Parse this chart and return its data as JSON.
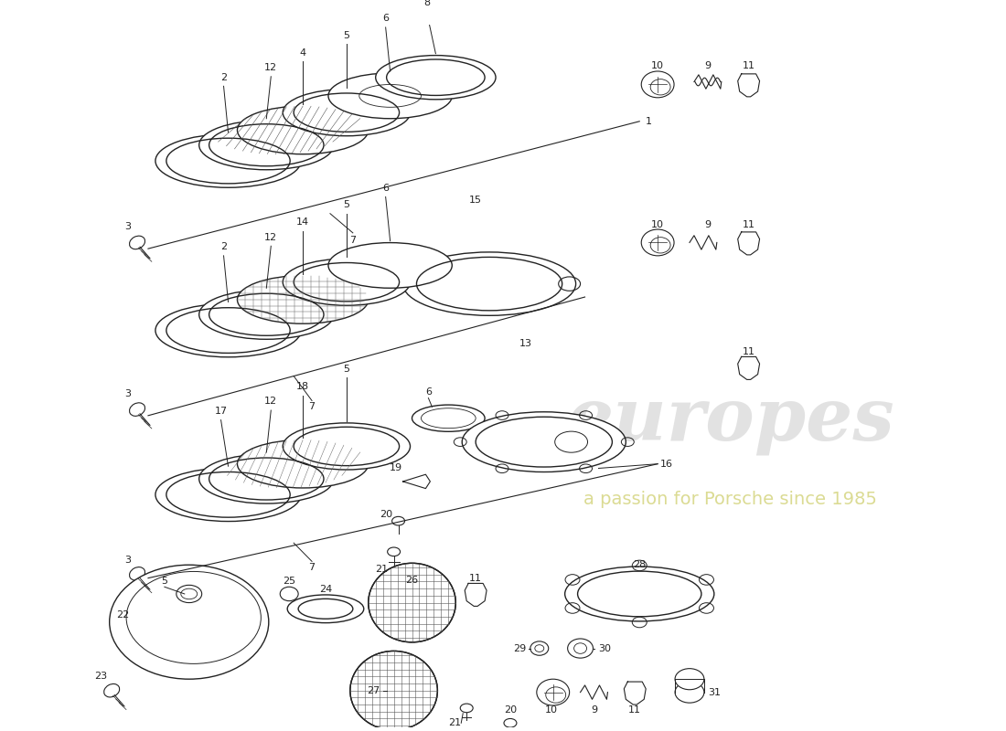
{
  "background_color": "#ffffff",
  "line_color": "#222222",
  "fig_width": 11.0,
  "fig_height": 8.0,
  "dpi": 100
}
